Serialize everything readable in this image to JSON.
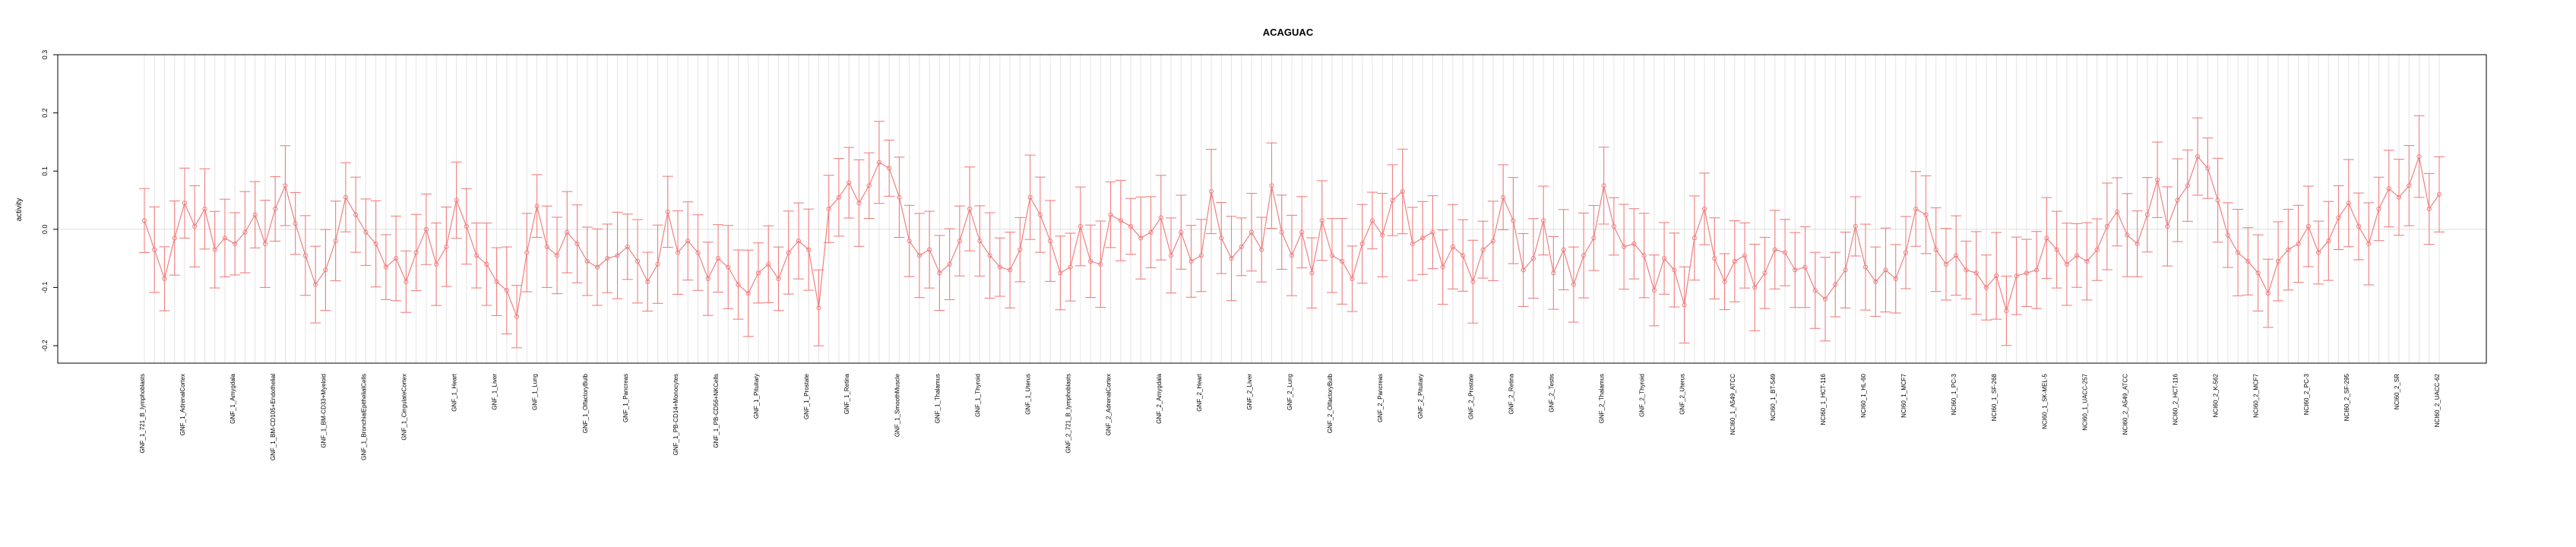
{
  "chart_data": {
    "type": "line",
    "title": "ACAGUAC",
    "xlabel": "",
    "ylabel": "activity",
    "ylim": [
      -0.23,
      0.3
    ],
    "yticks": [
      -0.2,
      -0.1,
      0.0,
      0.1,
      0.2,
      0.3
    ],
    "grid": true,
    "error_bars": true,
    "color": "#f08080",
    "n_points": 220,
    "sample_labels_visible": [
      "GNF_1_721_B_lymphoblasts",
      "GNF_1_AdrenalCortex",
      "GNF_1_Amygdala",
      "GNF_1_BM-CD105+Endothelial",
      "GNF_1_BM-CD33+Myeloid",
      "GNF_1_BronchialEpithelialCells",
      "GNF_1_CingulateCortex",
      "GNF_1_Heart",
      "GNF_1_Liver",
      "GNF_1_Lung",
      "GNF_1_OlfactoryBulb",
      "GNF_1_Pancreas",
      "GNF_1_PB-CD14+Monocytes",
      "GNF_1_PB-CD56+NKCells",
      "GNF_1_Pituitary",
      "GNF_1_Prostate",
      "GNF_1_Retina",
      "GNF_1_SmoothMuscle",
      "GNF_1_Thalamus",
      "GNF_1_Thyroid",
      "GNF_1_Uterus",
      "GNF_2_721_B_lymphoblasts",
      "GNF_2_AdrenalCortex",
      "GNF_2_Amygdala",
      "GNF_2_Heart",
      "GNF_2_Liver",
      "GNF_2_Lung",
      "GNF_2_OlfactoryBulb",
      "GNF_2_Pancreas",
      "GNF_2_Pituitary",
      "GNF_2_Prostate",
      "GNF_2_Retina",
      "GNF_2_Testis",
      "GNF_2_Thalamus",
      "GNF_2_Thyroid",
      "GNF_2_Uterus",
      "NCI60_1_A549_ATCC",
      "NCI60_1_BT-549",
      "NCI60_1_HCT-116",
      "NCI60_1_HL-60",
      "NCI60_1_MCF7",
      "NCI60_1_PC-3",
      "NCI60_1_SF-268",
      "NCI60_1_SK-MEL-5",
      "NCI60_1_UACC-257",
      "NCI60_2_A549_ATCC",
      "NCI60_2_HCT-116",
      "NCI60_2_K-562",
      "NCI60_2_MCF7",
      "NCI60_2_PC-3",
      "NCI60_2_SF-295",
      "NCI60_2_SR",
      "NCI60_2_UACC-62"
    ],
    "values": [
      0.015,
      -0.035,
      -0.085,
      -0.015,
      0.045,
      0.005,
      0.035,
      -0.035,
      -0.015,
      -0.025,
      -0.005,
      0.025,
      -0.025,
      0.035,
      0.075,
      0.01,
      -0.045,
      -0.095,
      -0.07,
      -0.02,
      0.055,
      0.025,
      -0.005,
      -0.025,
      -0.065,
      -0.05,
      -0.09,
      -0.04,
      0.0,
      -0.06,
      -0.03,
      0.05,
      0.005,
      -0.045,
      -0.06,
      -0.09,
      -0.105,
      -0.15,
      -0.04,
      0.04,
      -0.03,
      -0.045,
      -0.005,
      -0.025,
      -0.055,
      -0.065,
      -0.05,
      -0.045,
      -0.03,
      -0.055,
      -0.09,
      -0.06,
      0.03,
      -0.04,
      -0.02,
      -0.04,
      -0.085,
      -0.05,
      -0.065,
      -0.095,
      -0.11,
      -0.075,
      -0.06,
      -0.085,
      -0.04,
      -0.02,
      -0.035,
      -0.135,
      0.035,
      0.055,
      0.08,
      0.045,
      0.075,
      0.115,
      0.105,
      0.055,
      -0.02,
      -0.045,
      -0.035,
      -0.075,
      -0.06,
      -0.02,
      0.035,
      -0.02,
      -0.045,
      -0.065,
      -0.07,
      -0.035,
      0.055,
      0.025,
      -0.02,
      -0.075,
      -0.065,
      0.005,
      -0.055,
      -0.06,
      0.025,
      0.015,
      0.005,
      -0.015,
      -0.005,
      0.02,
      -0.045,
      -0.005,
      -0.055,
      -0.045,
      0.065,
      -0.015,
      -0.05,
      -0.03,
      -0.005,
      -0.035,
      0.075,
      -0.005,
      -0.045,
      -0.005,
      -0.075,
      0.015,
      -0.045,
      -0.055,
      -0.085,
      -0.025,
      0.015,
      -0.01,
      0.05,
      0.065,
      -0.025,
      -0.015,
      -0.005,
      -0.065,
      -0.03,
      -0.045,
      -0.09,
      -0.035,
      -0.02,
      0.055,
      0.015,
      -0.07,
      -0.05,
      0.015,
      -0.075,
      -0.035,
      -0.095,
      -0.045,
      -0.015,
      0.075,
      0.005,
      -0.03,
      -0.025,
      -0.045,
      -0.105,
      -0.05,
      -0.07,
      -0.13,
      -0.015,
      0.035,
      -0.05,
      -0.09,
      -0.055,
      -0.045,
      -0.1,
      -0.075,
      -0.035,
      -0.04,
      -0.07,
      -0.065,
      -0.105,
      -0.12,
      -0.095,
      -0.07,
      0.005,
      -0.065,
      -0.09,
      -0.07,
      -0.085,
      -0.04,
      0.035,
      0.025,
      -0.035,
      -0.06,
      -0.045,
      -0.07,
      -0.075,
      -0.1,
      -0.08,
      -0.14,
      -0.08,
      -0.075,
      -0.07,
      -0.015,
      -0.035,
      -0.06,
      -0.045,
      -0.055,
      -0.035,
      0.005,
      0.03,
      -0.01,
      -0.025,
      0.025,
      0.085,
      0.005,
      0.05,
      0.075,
      0.125,
      0.105,
      0.05,
      -0.01,
      -0.04,
      -0.055,
      -0.075,
      -0.11,
      -0.055,
      -0.035,
      -0.025,
      0.005,
      -0.04,
      -0.02,
      0.02,
      0.045,
      0.005,
      -0.025,
      0.035,
      0.07,
      0.055,
      0.075,
      0.125,
      0.035,
      0.06
    ]
  }
}
